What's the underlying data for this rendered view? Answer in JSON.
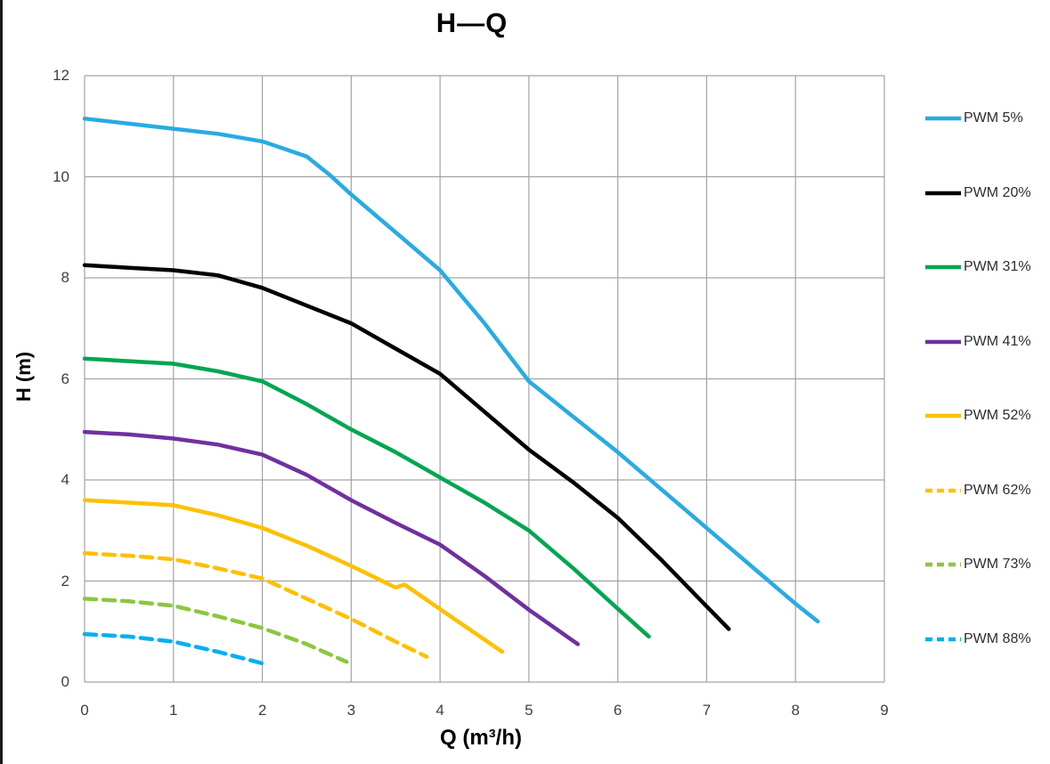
{
  "chart_data": {
    "type": "line",
    "title": "H—Q",
    "xlabel": "Q (m³/h)",
    "ylabel": "H (m)",
    "xlim": [
      0,
      9
    ],
    "ylim": [
      0,
      12
    ],
    "x_ticks": [
      0,
      1,
      2,
      3,
      4,
      5,
      6,
      7,
      8,
      9
    ],
    "y_ticks": [
      0,
      2,
      4,
      6,
      8,
      10,
      12
    ],
    "grid": true,
    "legend_position": "right",
    "series": [
      {
        "name": "PWM 5%",
        "color": "#29ABE2",
        "style": "solid",
        "points": [
          [
            0,
            11.15
          ],
          [
            0.5,
            11.05
          ],
          [
            1,
            10.95
          ],
          [
            1.5,
            10.85
          ],
          [
            2,
            10.7
          ],
          [
            2.5,
            10.4
          ],
          [
            2.75,
            10.05
          ],
          [
            3,
            9.65
          ],
          [
            3.5,
            8.9
          ],
          [
            4,
            8.15
          ],
          [
            4.5,
            7.1
          ],
          [
            5,
            5.95
          ],
          [
            5.5,
            5.25
          ],
          [
            6,
            4.55
          ],
          [
            6.5,
            3.8
          ],
          [
            7,
            3.05
          ],
          [
            7.5,
            2.3
          ],
          [
            8,
            1.55
          ],
          [
            8.25,
            1.2
          ]
        ]
      },
      {
        "name": "PWM 20%",
        "color": "#000000",
        "style": "solid",
        "points": [
          [
            0,
            8.25
          ],
          [
            0.5,
            8.2
          ],
          [
            1,
            8.15
          ],
          [
            1.5,
            8.05
          ],
          [
            2,
            7.8
          ],
          [
            2.5,
            7.45
          ],
          [
            3,
            7.1
          ],
          [
            3.5,
            6.6
          ],
          [
            4,
            6.1
          ],
          [
            4.5,
            5.35
          ],
          [
            5,
            4.6
          ],
          [
            5.5,
            3.95
          ],
          [
            6,
            3.25
          ],
          [
            6.5,
            2.4
          ],
          [
            7,
            1.5
          ],
          [
            7.25,
            1.05
          ]
        ]
      },
      {
        "name": "PWM 31%",
        "color": "#00A651",
        "style": "solid",
        "points": [
          [
            0,
            6.4
          ],
          [
            0.5,
            6.35
          ],
          [
            1,
            6.3
          ],
          [
            1.5,
            6.15
          ],
          [
            2,
            5.95
          ],
          [
            2.5,
            5.5
          ],
          [
            3,
            5.0
          ],
          [
            3.5,
            4.55
          ],
          [
            4,
            4.05
          ],
          [
            4.5,
            3.55
          ],
          [
            5,
            3.0
          ],
          [
            5.5,
            2.25
          ],
          [
            6,
            1.45
          ],
          [
            6.35,
            0.9
          ]
        ]
      },
      {
        "name": "PWM 41%",
        "color": "#7030A0",
        "style": "solid",
        "points": [
          [
            0,
            4.95
          ],
          [
            0.5,
            4.9
          ],
          [
            1,
            4.82
          ],
          [
            1.5,
            4.7
          ],
          [
            2,
            4.5
          ],
          [
            2.5,
            4.1
          ],
          [
            3,
            3.6
          ],
          [
            3.5,
            3.15
          ],
          [
            4,
            2.72
          ],
          [
            4.5,
            2.1
          ],
          [
            5,
            1.43
          ],
          [
            5.55,
            0.75
          ]
        ]
      },
      {
        "name": "PWM 52%",
        "color": "#FFC000",
        "style": "solid",
        "points": [
          [
            0,
            3.6
          ],
          [
            0.5,
            3.55
          ],
          [
            1,
            3.5
          ],
          [
            1.5,
            3.3
          ],
          [
            2,
            3.05
          ],
          [
            2.5,
            2.7
          ],
          [
            3,
            2.3
          ],
          [
            3.5,
            1.87
          ],
          [
            3.6,
            1.93
          ],
          [
            4.2,
            1.2
          ],
          [
            4.7,
            0.6
          ]
        ]
      },
      {
        "name": "PWM 62%",
        "color": "#FFC000",
        "style": "dashed",
        "points": [
          [
            0,
            2.55
          ],
          [
            0.5,
            2.5
          ],
          [
            1,
            2.43
          ],
          [
            1.5,
            2.25
          ],
          [
            2,
            2.05
          ],
          [
            2.5,
            1.65
          ],
          [
            3,
            1.25
          ],
          [
            3.5,
            0.8
          ],
          [
            3.85,
            0.5
          ]
        ]
      },
      {
        "name": "PWM 73%",
        "color": "#8DC63F",
        "style": "dashed",
        "points": [
          [
            0,
            1.65
          ],
          [
            0.5,
            1.6
          ],
          [
            1,
            1.51
          ],
          [
            1.5,
            1.3
          ],
          [
            2,
            1.07
          ],
          [
            2.5,
            0.75
          ],
          [
            2.95,
            0.4
          ]
        ]
      },
      {
        "name": "PWM 88%",
        "color": "#00B0F0",
        "style": "dashed",
        "points": [
          [
            0,
            0.95
          ],
          [
            0.5,
            0.9
          ],
          [
            1,
            0.8
          ],
          [
            1.5,
            0.6
          ],
          [
            2,
            0.37
          ]
        ]
      }
    ]
  },
  "colors": {
    "gridline": "#A3A3A3",
    "tick_label": "#3F3F3F",
    "title": "#000000",
    "window_border": "#1B1B1B"
  }
}
